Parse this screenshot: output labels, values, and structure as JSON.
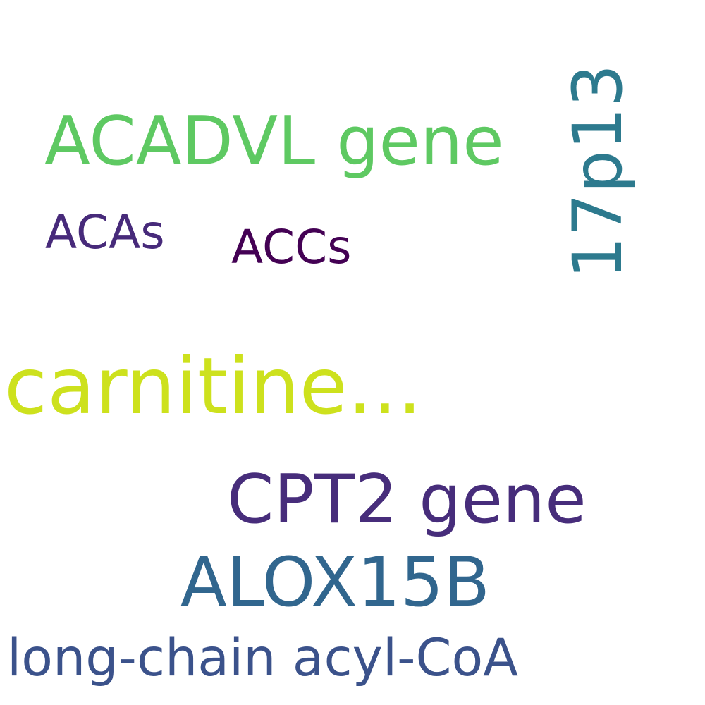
{
  "words": [
    {
      "id": "carnitine",
      "text": "carnitine...",
      "color": "#cde11d"
    },
    {
      "id": "cpt2",
      "text": "CPT2 gene",
      "color": "#472d7b"
    },
    {
      "id": "alox",
      "text": "ALOX15B",
      "color": "#31668e"
    },
    {
      "id": "acadvl",
      "text": "ACADVL gene",
      "color": "#5ec962"
    },
    {
      "id": "p13",
      "text": "17p13",
      "color": "#2d7a8e"
    },
    {
      "id": "longchain",
      "text": "long-chain acyl-CoA",
      "color": "#3b528b"
    },
    {
      "id": "acas",
      "text": "ACAs",
      "color": "#472a7a"
    },
    {
      "id": "accs",
      "text": "ACCs",
      "color": "#440154"
    }
  ]
}
